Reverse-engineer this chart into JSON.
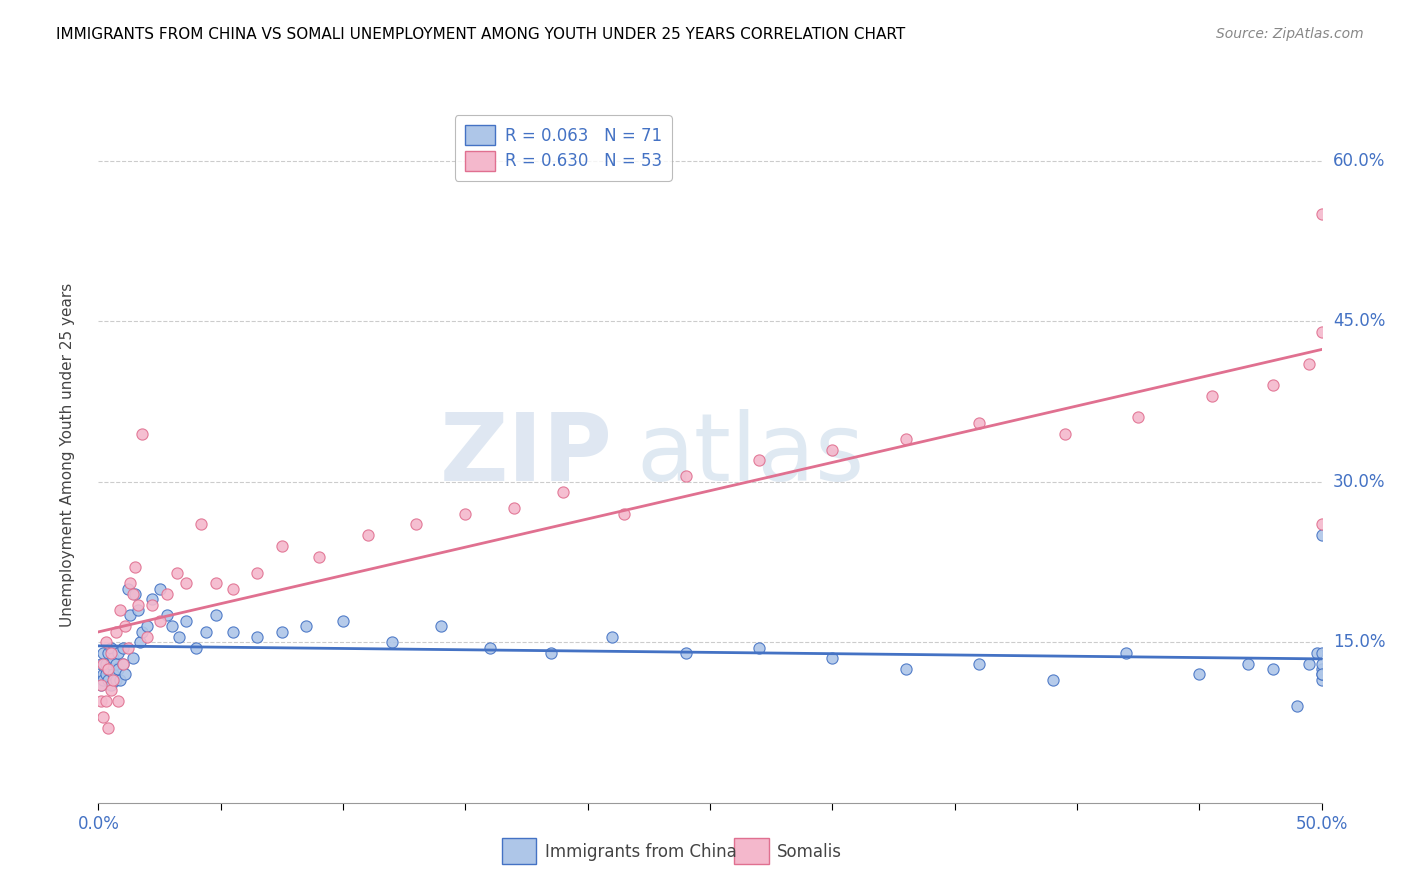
{
  "title": "IMMIGRANTS FROM CHINA VS SOMALI UNEMPLOYMENT AMONG YOUTH UNDER 25 YEARS CORRELATION CHART",
  "source": "Source: ZipAtlas.com",
  "ylabel": "Unemployment Among Youth under 25 years",
  "legend_label_china": "Immigrants from China",
  "legend_label_somali": "Somalis",
  "legend_r_china": "R = 0.063",
  "legend_n_china": "N = 71",
  "legend_r_somali": "R = 0.630",
  "legend_n_somali": "N = 53",
  "color_china_fill": "#aec6e8",
  "color_somali_fill": "#f4b8cc",
  "color_china_line": "#4472c4",
  "color_somali_line": "#e07090",
  "ytick_labels": [
    "15.0%",
    "30.0%",
    "45.0%",
    "60.0%"
  ],
  "ytick_values": [
    0.15,
    0.3,
    0.45,
    0.6
  ],
  "xlim": [
    0.0,
    0.5
  ],
  "ylim": [
    0.0,
    0.65
  ],
  "china_x": [
    0.001,
    0.001,
    0.002,
    0.002,
    0.002,
    0.003,
    0.003,
    0.003,
    0.004,
    0.004,
    0.004,
    0.005,
    0.005,
    0.005,
    0.006,
    0.006,
    0.007,
    0.007,
    0.008,
    0.008,
    0.009,
    0.01,
    0.01,
    0.011,
    0.012,
    0.013,
    0.014,
    0.015,
    0.016,
    0.017,
    0.018,
    0.02,
    0.022,
    0.025,
    0.028,
    0.03,
    0.033,
    0.036,
    0.04,
    0.044,
    0.048,
    0.055,
    0.065,
    0.075,
    0.085,
    0.1,
    0.12,
    0.14,
    0.16,
    0.185,
    0.21,
    0.24,
    0.27,
    0.3,
    0.33,
    0.36,
    0.39,
    0.42,
    0.45,
    0.47,
    0.48,
    0.49,
    0.495,
    0.498,
    0.5,
    0.5,
    0.5,
    0.5,
    0.5,
    0.5,
    0.5
  ],
  "china_y": [
    0.11,
    0.13,
    0.12,
    0.14,
    0.115,
    0.125,
    0.13,
    0.12,
    0.115,
    0.14,
    0.125,
    0.13,
    0.11,
    0.145,
    0.12,
    0.135,
    0.115,
    0.13,
    0.125,
    0.14,
    0.115,
    0.13,
    0.145,
    0.12,
    0.2,
    0.175,
    0.135,
    0.195,
    0.18,
    0.15,
    0.16,
    0.165,
    0.19,
    0.2,
    0.175,
    0.165,
    0.155,
    0.17,
    0.145,
    0.16,
    0.175,
    0.16,
    0.155,
    0.16,
    0.165,
    0.17,
    0.15,
    0.165,
    0.145,
    0.14,
    0.155,
    0.14,
    0.145,
    0.135,
    0.125,
    0.13,
    0.115,
    0.14,
    0.12,
    0.13,
    0.125,
    0.09,
    0.13,
    0.14,
    0.25,
    0.14,
    0.125,
    0.115,
    0.12,
    0.13,
    0.12
  ],
  "somali_x": [
    0.001,
    0.001,
    0.002,
    0.002,
    0.003,
    0.003,
    0.004,
    0.004,
    0.005,
    0.005,
    0.006,
    0.007,
    0.008,
    0.009,
    0.01,
    0.011,
    0.012,
    0.013,
    0.014,
    0.015,
    0.016,
    0.018,
    0.02,
    0.022,
    0.025,
    0.028,
    0.032,
    0.036,
    0.042,
    0.048,
    0.055,
    0.065,
    0.075,
    0.09,
    0.11,
    0.13,
    0.15,
    0.17,
    0.19,
    0.215,
    0.24,
    0.27,
    0.3,
    0.33,
    0.36,
    0.395,
    0.425,
    0.455,
    0.48,
    0.495,
    0.5,
    0.5,
    0.5
  ],
  "somali_y": [
    0.095,
    0.11,
    0.08,
    0.13,
    0.095,
    0.15,
    0.07,
    0.125,
    0.105,
    0.14,
    0.115,
    0.16,
    0.095,
    0.18,
    0.13,
    0.165,
    0.145,
    0.205,
    0.195,
    0.22,
    0.185,
    0.345,
    0.155,
    0.185,
    0.17,
    0.195,
    0.215,
    0.205,
    0.26,
    0.205,
    0.2,
    0.215,
    0.24,
    0.23,
    0.25,
    0.26,
    0.27,
    0.275,
    0.29,
    0.27,
    0.305,
    0.32,
    0.33,
    0.34,
    0.355,
    0.345,
    0.36,
    0.38,
    0.39,
    0.41,
    0.26,
    0.55,
    0.44
  ]
}
